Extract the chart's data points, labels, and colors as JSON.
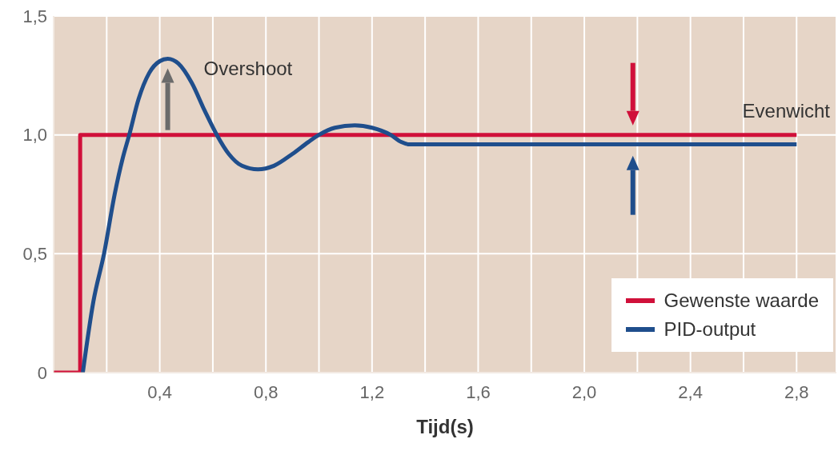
{
  "chart_data": {
    "type": "line",
    "xlabel": "Tijd(s)",
    "xlim": [
      0,
      2.95
    ],
    "xticks": [
      {
        "value": 0.2,
        "label": null
      },
      {
        "value": 0.4,
        "label": "0,4"
      },
      {
        "value": 0.6,
        "label": null
      },
      {
        "value": 0.8,
        "label": "0,8"
      },
      {
        "value": 1.0,
        "label": null
      },
      {
        "value": 1.2,
        "label": "1,2"
      },
      {
        "value": 1.4,
        "label": null
      },
      {
        "value": 1.6,
        "label": "1,6"
      },
      {
        "value": 1.8,
        "label": null
      },
      {
        "value": 2.0,
        "label": "2,0"
      },
      {
        "value": 2.2,
        "label": null
      },
      {
        "value": 2.4,
        "label": "2,4"
      },
      {
        "value": 2.6,
        "label": null
      },
      {
        "value": 2.8,
        "label": "2,8"
      }
    ],
    "ylim": [
      0,
      1.5
    ],
    "yticks": [
      {
        "value": 0,
        "label": "0"
      },
      {
        "value": 0.5,
        "label": "0,5"
      },
      {
        "value": 1.0,
        "label": "1,0"
      },
      {
        "value": 1.5,
        "label": "1,5"
      }
    ],
    "grid": true,
    "legend": "bottom right",
    "marker": "none",
    "line_style": "solid",
    "series": [
      {
        "name": "Gewenste waarde",
        "color": "#d0103a",
        "x": [
          0,
          0.1,
          0.1,
          2.8
        ],
        "values": [
          0,
          0,
          1,
          1
        ]
      },
      {
        "name": "PID-output",
        "color": "#1f4e8c",
        "x": [
          0.11,
          0.15,
          0.19,
          0.23,
          0.26,
          0.285,
          0.32,
          0.36,
          0.4,
          0.43,
          0.47,
          0.52,
          0.57,
          0.615,
          0.66,
          0.71,
          0.77,
          0.83,
          0.9,
          0.96,
          1.0,
          1.06,
          1.135,
          1.2,
          1.27,
          1.31,
          1.34,
          2.8
        ],
        "values": [
          0,
          0.3,
          0.5,
          0.75,
          0.9,
          1.0,
          1.15,
          1.26,
          1.31,
          1.32,
          1.3,
          1.22,
          1.1,
          1.0,
          0.92,
          0.87,
          0.855,
          0.87,
          0.92,
          0.97,
          1.0,
          1.03,
          1.04,
          1.03,
          1.0,
          0.97,
          0.96,
          0.96
        ]
      }
    ],
    "annotations": [
      "Overshoot",
      "Evenwicht"
    ]
  }
}
